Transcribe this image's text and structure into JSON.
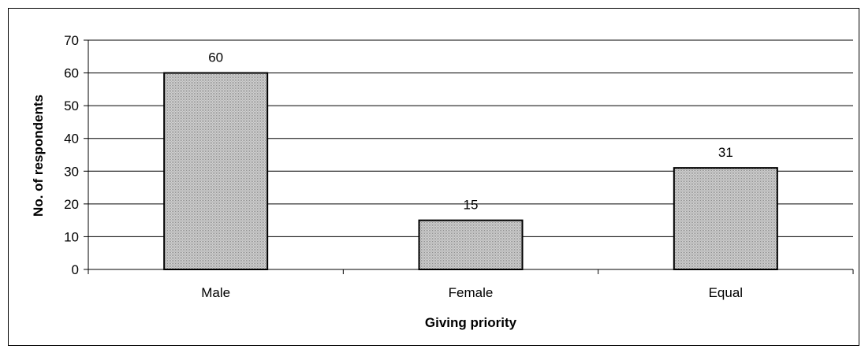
{
  "chart_data": {
    "type": "bar",
    "categories": [
      "Male",
      "Female",
      "Equal"
    ],
    "values": [
      60,
      15,
      31
    ],
    "data_labels": [
      "60",
      "15",
      "31"
    ],
    "xlabel": "Giving priority",
    "ylabel": "No. of respondents",
    "ylim": [
      0,
      70
    ],
    "yticks": [
      "0",
      "10",
      "20",
      "30",
      "40",
      "50",
      "60",
      "70"
    ],
    "grid": true,
    "legend": "none"
  },
  "colors": {
    "bar_fill": "#c9c9c9",
    "bar_stroke": "#000000",
    "grid": "#000000",
    "axis": "#000000"
  }
}
